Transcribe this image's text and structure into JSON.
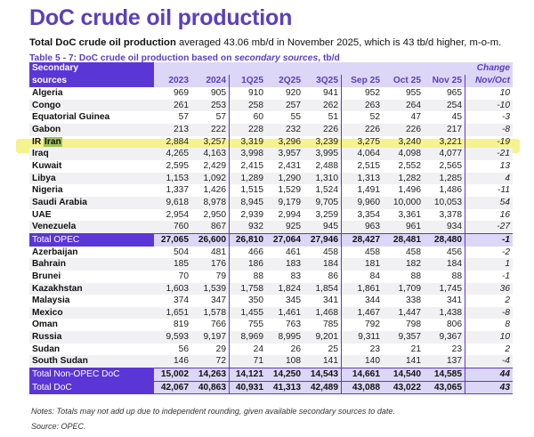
{
  "title": "DoC crude oil production",
  "subtitle": {
    "bold": "Total DoC crude oil production",
    "rest": " averaged 43.06 mb/d in November 2025, which is 43 tb/d higher, m-o-m."
  },
  "caption": {
    "pre": "Table 5 - 7: DoC crude oil production based on ",
    "italic": "secondary sources",
    "post": ", tb/d"
  },
  "header": {
    "first_line1": "Secondary",
    "first_line2": "sources",
    "columns": [
      "2023",
      "2024",
      "1Q25",
      "2Q25",
      "3Q25",
      "Sep 25",
      "Oct 25",
      "Nov 25"
    ],
    "change_line1": "Change",
    "change_line2": "Nov/Oct"
  },
  "highlight_color": "#f5f07a",
  "accent": "#5b36d6",
  "rows": [
    {
      "name": "Algeria",
      "v": [
        "969",
        "905",
        "910",
        "920",
        "941",
        "952",
        "955",
        "965",
        "10"
      ]
    },
    {
      "name": "Congo",
      "v": [
        "261",
        "253",
        "258",
        "257",
        "262",
        "263",
        "264",
        "254",
        "-10"
      ]
    },
    {
      "name": "Equatorial Guinea",
      "v": [
        "57",
        "57",
        "60",
        "55",
        "51",
        "52",
        "47",
        "45",
        "-3"
      ]
    },
    {
      "name": "Gabon",
      "v": [
        "213",
        "222",
        "228",
        "232",
        "226",
        "226",
        "226",
        "217",
        "-8"
      ]
    },
    {
      "name": "IR",
      "name2": "Iran",
      "highlighted": true,
      "v": [
        "2,884",
        "3,257",
        "3,319",
        "3,296",
        "3,239",
        "3,275",
        "3,240",
        "3,221",
        "-19"
      ]
    },
    {
      "name": "Iraq",
      "v": [
        "4,265",
        "4,163",
        "3,998",
        "3,957",
        "3,995",
        "4,064",
        "4,098",
        "4,077",
        "-21"
      ]
    },
    {
      "name": "Kuwait",
      "v": [
        "2,595",
        "2,429",
        "2,415",
        "2,431",
        "2,488",
        "2,515",
        "2,552",
        "2,565",
        "13"
      ]
    },
    {
      "name": "Libya",
      "v": [
        "1,153",
        "1,092",
        "1,289",
        "1,290",
        "1,310",
        "1,313",
        "1,282",
        "1,285",
        "4"
      ]
    },
    {
      "name": "Nigeria",
      "v": [
        "1,337",
        "1,426",
        "1,515",
        "1,529",
        "1,524",
        "1,491",
        "1,496",
        "1,486",
        "-11"
      ]
    },
    {
      "name": "Saudi Arabia",
      "v": [
        "9,618",
        "8,978",
        "8,945",
        "9,179",
        "9,705",
        "9,960",
        "10,000",
        "10,053",
        "54"
      ]
    },
    {
      "name": "UAE",
      "v": [
        "2,954",
        "2,950",
        "2,939",
        "2,994",
        "3,259",
        "3,354",
        "3,361",
        "3,378",
        "16"
      ]
    },
    {
      "name": "Venezuela",
      "v": [
        "760",
        "867",
        "932",
        "925",
        "945",
        "963",
        "961",
        "934",
        "-27"
      ]
    },
    {
      "name": "Total  OPEC",
      "total": true,
      "v": [
        "27,065",
        "26,600",
        "26,810",
        "27,064",
        "27,946",
        "28,427",
        "28,481",
        "28,480",
        "-1"
      ]
    },
    {
      "name": "Azerbaijan",
      "v": [
        "504",
        "481",
        "466",
        "461",
        "458",
        "458",
        "458",
        "456",
        "-2"
      ]
    },
    {
      "name": "Bahrain",
      "v": [
        "185",
        "176",
        "186",
        "183",
        "184",
        "181",
        "182",
        "184",
        "1"
      ]
    },
    {
      "name": "Brunei",
      "v": [
        "70",
        "79",
        "88",
        "83",
        "86",
        "84",
        "88",
        "88",
        "-1"
      ]
    },
    {
      "name": "Kazakhstan",
      "v": [
        "1,603",
        "1,539",
        "1,758",
        "1,824",
        "1,854",
        "1,861",
        "1,709",
        "1,745",
        "36"
      ]
    },
    {
      "name": "Malaysia",
      "v": [
        "374",
        "347",
        "350",
        "345",
        "341",
        "344",
        "338",
        "341",
        "2"
      ]
    },
    {
      "name": "Mexico",
      "v": [
        "1,651",
        "1,578",
        "1,455",
        "1,461",
        "1,468",
        "1,467",
        "1,447",
        "1,438",
        "-8"
      ]
    },
    {
      "name": "Oman",
      "v": [
        "819",
        "766",
        "755",
        "763",
        "785",
        "792",
        "798",
        "806",
        "8"
      ]
    },
    {
      "name": "Russia",
      "v": [
        "9,593",
        "9,197",
        "8,969",
        "8,995",
        "9,201",
        "9,311",
        "9,357",
        "9,367",
        "10"
      ]
    },
    {
      "name": "Sudan",
      "v": [
        "56",
        "29",
        "24",
        "26",
        "25",
        "23",
        "21",
        "23",
        "2"
      ]
    },
    {
      "name": "South Sudan",
      "v": [
        "146",
        "72",
        "71",
        "108",
        "141",
        "140",
        "141",
        "137",
        "-4"
      ]
    },
    {
      "name": "Total Non-OPEC DoC",
      "total": true,
      "v": [
        "15,002",
        "14,263",
        "14,121",
        "14,250",
        "14,543",
        "14,661",
        "14,540",
        "14,585",
        "44"
      ]
    },
    {
      "name": "Total DoC",
      "total": true,
      "v": [
        "42,067",
        "40,863",
        "40,931",
        "41,313",
        "42,489",
        "43,088",
        "43,022",
        "43,065",
        "43"
      ]
    }
  ],
  "notes": "Notes: Totals may not add up due to independent rounding, given available secondary sources to date.",
  "source": "Source: OPEC."
}
